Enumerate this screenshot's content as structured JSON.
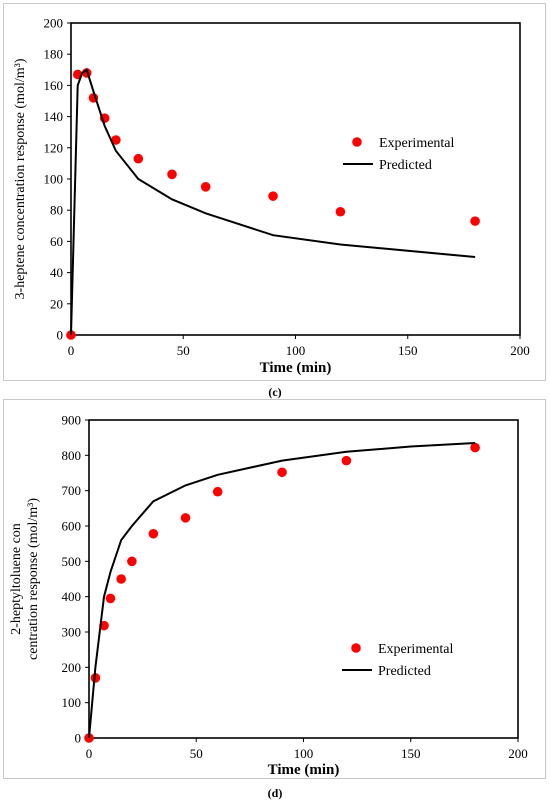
{
  "charts": {
    "chart_c": {
      "caption": "(c)"
    },
    "chart_d": {
      "caption": "(d)"
    }
  },
  "chart_data": [
    {
      "type": "scatter",
      "caption": "(c)",
      "xlabel": "Time (min)",
      "ylabel": "3-heptene concentration response (mol/m³)",
      "xlim": [
        0,
        200
      ],
      "ylim": [
        0,
        200
      ],
      "xticks": [
        0,
        50,
        100,
        150,
        200
      ],
      "yticks": [
        0,
        20,
        40,
        60,
        80,
        100,
        120,
        140,
        160,
        180,
        200
      ],
      "grid": false,
      "legend_position": "right",
      "series": [
        {
          "name": "Experimental",
          "style": "markers",
          "color": "#ff0000",
          "x": [
            0,
            3,
            7,
            10,
            15,
            20,
            30,
            45,
            60,
            90,
            120,
            180
          ],
          "y": [
            0,
            167,
            168,
            152,
            139,
            125,
            113,
            103,
            95,
            89,
            79,
            73
          ]
        },
        {
          "name": "Predicted",
          "style": "line",
          "color": "#000000",
          "x": [
            0,
            3,
            5,
            7,
            10,
            15,
            20,
            30,
            45,
            60,
            90,
            120,
            150,
            180
          ],
          "y": [
            0,
            160,
            168,
            170,
            156,
            134,
            118,
            100,
            87,
            78,
            64,
            58,
            54,
            50
          ]
        }
      ]
    },
    {
      "type": "scatter",
      "caption": "(d)",
      "xlabel": "Time (min)",
      "ylabel": "2-heptyltoluene concentration response (mol/m³)",
      "xlim": [
        0,
        200
      ],
      "ylim": [
        0,
        900
      ],
      "xticks": [
        0,
        50,
        100,
        150,
        200
      ],
      "yticks": [
        0,
        100,
        200,
        300,
        400,
        500,
        600,
        700,
        800,
        900
      ],
      "grid": false,
      "legend_position": "right",
      "series": [
        {
          "name": "Experimental",
          "style": "markers",
          "color": "#ff0000",
          "x": [
            0,
            3,
            7,
            10,
            15,
            20,
            30,
            45,
            60,
            90,
            120,
            180
          ],
          "y": [
            0,
            170,
            318,
            395,
            450,
            500,
            578,
            623,
            697,
            752,
            785,
            822
          ]
        },
        {
          "name": "Predicted",
          "style": "line",
          "color": "#000000",
          "x": [
            0,
            3,
            5,
            7,
            10,
            15,
            20,
            30,
            45,
            60,
            90,
            120,
            150,
            180
          ],
          "y": [
            0,
            200,
            300,
            400,
            470,
            560,
            600,
            670,
            715,
            745,
            785,
            810,
            825,
            835
          ]
        }
      ]
    }
  ]
}
